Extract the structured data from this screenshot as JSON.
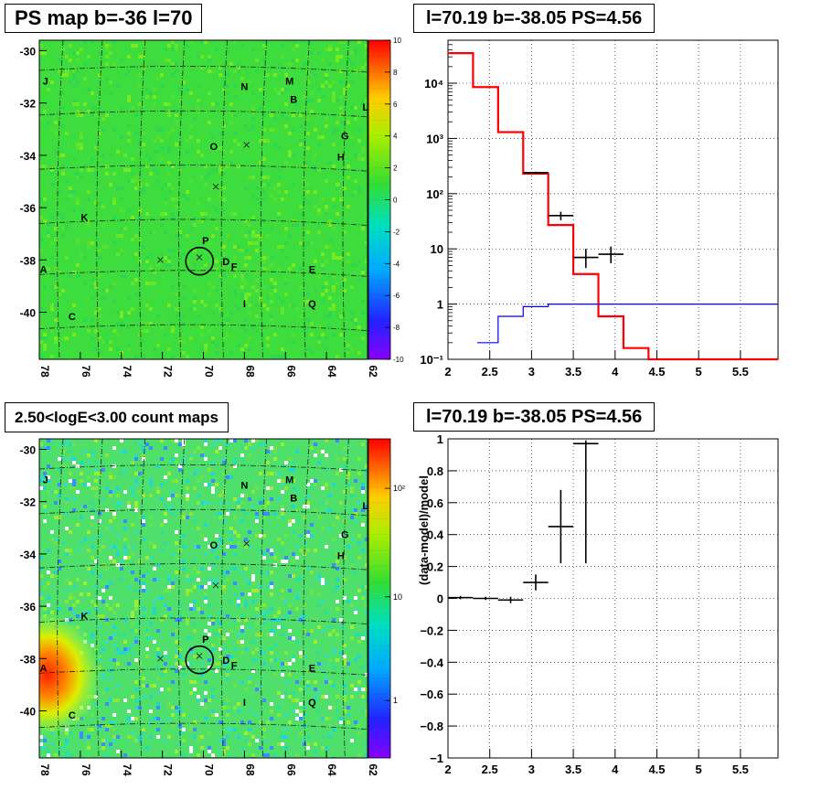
{
  "panels": {
    "tl_title": "PS map b=-36 l=70",
    "tr_title": "l=70.19 b=-38.05 PS=4.56",
    "bl_title": "2.50<logE<3.00 count maps",
    "br_title": "l=70.19 b=-38.05 PS=4.56"
  },
  "maps": {
    "x_ticks": [
      "78",
      "76",
      "74",
      "72",
      "70",
      "68",
      "66",
      "64",
      "62"
    ],
    "y_ticks": [
      "-30",
      "-32",
      "-34",
      "-36",
      "-38",
      "-40"
    ],
    "source_labels": [
      "J",
      "N",
      "M",
      "B",
      "L",
      "G",
      "H",
      "O",
      "K",
      "P",
      "A",
      "D",
      "F",
      "E",
      "I",
      "Q",
      "C"
    ],
    "ps_colorbar_ticks": [
      "10",
      "8",
      "6",
      "4",
      "2",
      "0",
      "-2",
      "-4",
      "-6",
      "-8",
      "-10"
    ],
    "count_colorbar_ticks": [
      "10²",
      "10",
      "1"
    ],
    "colors": {
      "ps_background": "#3ddd3d",
      "count_background": "#4ee06a",
      "hotspot": "#ff2a00"
    }
  },
  "chart_data": [
    {
      "type": "map",
      "title": "PS map b=-36 l=70",
      "xlim": [
        78,
        62
      ],
      "ylim": [
        -41.8,
        -29.6
      ],
      "x_ticks": [
        78,
        76,
        74,
        72,
        70,
        68,
        66,
        64,
        62
      ],
      "y_ticks": [
        -30,
        -32,
        -34,
        -36,
        -38,
        -40
      ],
      "colorbar": {
        "min": -10,
        "max": 10,
        "ticks": [
          10,
          8,
          6,
          4,
          2,
          0,
          -2,
          -4,
          -6,
          -8,
          -10
        ]
      },
      "markers": [
        {
          "label": "J",
          "l": 77.7,
          "b": -31.3
        },
        {
          "label": "N",
          "l": 68,
          "b": -31.5
        },
        {
          "label": "M",
          "l": 65.8,
          "b": -31.3
        },
        {
          "label": "B",
          "l": 65.6,
          "b": -32.0
        },
        {
          "label": "L",
          "l": 62.1,
          "b": -32.3
        },
        {
          "label": "G",
          "l": 63.1,
          "b": -33.4
        },
        {
          "label": "H",
          "l": 63.3,
          "b": -34.2
        },
        {
          "label": "O",
          "l": 69.5,
          "b": -33.8
        },
        {
          "label": "K",
          "l": 75.8,
          "b": -36.5
        },
        {
          "label": "P",
          "l": 69.9,
          "b": -37.4
        },
        {
          "label": "A",
          "l": 77.8,
          "b": -38.5
        },
        {
          "label": "D",
          "l": 68.9,
          "b": -38.2
        },
        {
          "label": "F",
          "l": 68.5,
          "b": -38.4
        },
        {
          "label": "E",
          "l": 64.7,
          "b": -38.5
        },
        {
          "label": "I",
          "l": 68,
          "b": -39.8
        },
        {
          "label": "Q",
          "l": 64.7,
          "b": -39.8
        },
        {
          "label": "C",
          "l": 76.4,
          "b": -40.3
        }
      ],
      "crosses": [
        {
          "l": 67.9,
          "b": -33.6
        },
        {
          "l": 69.4,
          "b": -35.2
        },
        {
          "l": 72.1,
          "b": -38.0
        },
        {
          "l": 70.2,
          "b": -37.9
        }
      ],
      "circle": {
        "l": 70.19,
        "b": -38.05
      }
    },
    {
      "type": "line",
      "title": "l=70.19 b=-38.05 PS=4.56",
      "ylog": true,
      "xlim": [
        2,
        5.95
      ],
      "ylim": [
        0.1,
        60000
      ],
      "x_ticks": [
        "2",
        "2.5",
        "3",
        "3.5",
        "4",
        "4.5",
        "5",
        "5.5"
      ],
      "y_ticks": [
        "10⁻¹",
        "1",
        "10",
        "10²",
        "10³",
        "10⁴"
      ],
      "series": [
        {
          "name": "",
          "color": "#ff0000",
          "step_edges": [
            2,
            2.3,
            2.6,
            2.9,
            3.2,
            3.5,
            3.8,
            4.1,
            4.4,
            5.95
          ],
          "values": [
            35000,
            8500,
            1300,
            230,
            27,
            3.5,
            0.6,
            0.16,
            0.1
          ]
        },
        {
          "name": "",
          "color": "#0000ff",
          "step_edges": [
            2.35,
            2.6,
            2.9,
            3.2,
            3.5,
            5.95
          ],
          "values": [
            0.2,
            0.6,
            0.9,
            1.0,
            1.0
          ]
        },
        {
          "name": "",
          "color": "#000000",
          "type": "errorbar",
          "points": [
            {
              "x": 3.05,
              "y": 240,
              "xerr": 0.15,
              "ylo": 230,
              "yhi": 250
            },
            {
              "x": 3.35,
              "y": 40,
              "xerr": 0.15,
              "ylo": 33,
              "yhi": 47
            },
            {
              "x": 3.65,
              "y": 7,
              "xerr": 0.15,
              "ylo": 4.5,
              "yhi": 10
            },
            {
              "x": 3.95,
              "y": 8,
              "xerr": 0.15,
              "ylo": 5.5,
              "yhi": 11
            }
          ]
        }
      ]
    },
    {
      "type": "map",
      "title": "2.50<logE<3.00 count maps",
      "xlim": [
        78,
        62
      ],
      "ylim": [
        -41.8,
        -29.6
      ],
      "x_ticks": [
        78,
        76,
        74,
        72,
        70,
        68,
        66,
        64,
        62
      ],
      "y_ticks": [
        -30,
        -32,
        -34,
        -36,
        -38,
        -40
      ],
      "colorbar": {
        "log": true,
        "ticks": [
          "10²",
          "10",
          "1"
        ]
      },
      "markers": "same as PS map",
      "hotspot": {
        "l": 77.8,
        "b": -38.3
      }
    },
    {
      "type": "scatter",
      "title": "l=70.19 b=-38.05 PS=4.56",
      "ylabel": "(data-model)/model",
      "xlim": [
        2,
        5.95
      ],
      "ylim": [
        -1,
        1
      ],
      "x_ticks": [
        "2",
        "2.5",
        "3",
        "3.5",
        "4",
        "4.5",
        "5",
        "5.5"
      ],
      "y_ticks": [
        "1",
        "0.8",
        "0.6",
        "0.4",
        "0.2",
        "0",
        "−0.2",
        "−0.4",
        "−0.6",
        "−0.8",
        "−1"
      ],
      "points": [
        {
          "x": 2.15,
          "y": 0.005,
          "xerr": 0.15,
          "ylo": -0.005,
          "yhi": 0.015
        },
        {
          "x": 2.45,
          "y": 0.0,
          "xerr": 0.15,
          "ylo": -0.01,
          "yhi": 0.01
        },
        {
          "x": 2.75,
          "y": -0.01,
          "xerr": 0.15,
          "ylo": -0.03,
          "yhi": 0.01
        },
        {
          "x": 3.05,
          "y": 0.1,
          "xerr": 0.15,
          "ylo": 0.05,
          "yhi": 0.15
        },
        {
          "x": 3.35,
          "y": 0.45,
          "xerr": 0.15,
          "ylo": 0.22,
          "yhi": 0.68
        },
        {
          "x": 3.65,
          "y": 0.97,
          "xerr": 0.15,
          "ylo": 0.22,
          "yhi": 0.99
        }
      ]
    }
  ]
}
